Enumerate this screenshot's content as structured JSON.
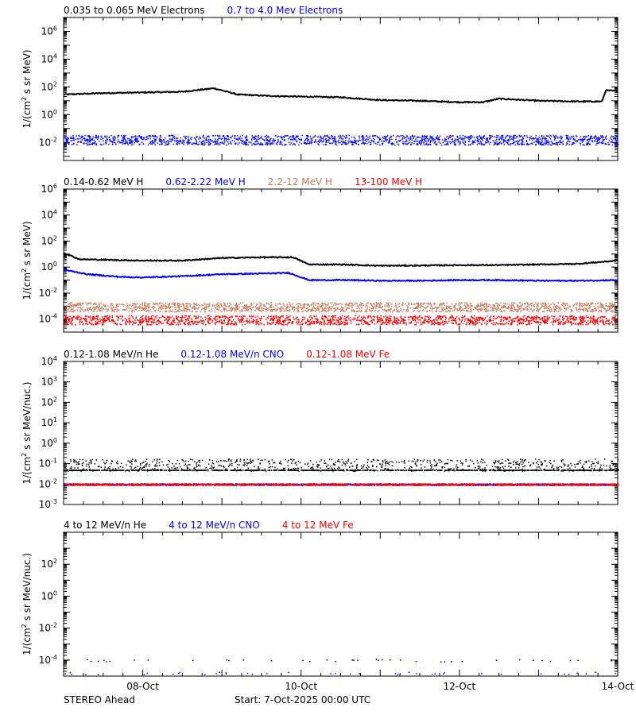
{
  "footer": {
    "left": "STEREO Ahead",
    "right": "Start:  7-Oct-2025 00:00 UTC"
  },
  "x_axis": {
    "range": [
      7.0,
      14.0
    ],
    "tick_labels": [
      {
        "x": 8,
        "label": "08-Oct"
      },
      {
        "x": 10,
        "label": "10-Oct"
      },
      {
        "x": 12,
        "label": "12-Oct"
      },
      {
        "x": 14,
        "label": "14-Oct"
      }
    ]
  },
  "chart_data": [
    {
      "type": "scatter",
      "ylabel_html": "1/(cm<tspan baseline-shift='super' font-size='9'>2</tspan> s sr MeV)",
      "ylabel": "1/(cm2 s sr MeV)",
      "ylog": true,
      "ylim_exp": [
        -3.3,
        7.0
      ],
      "yticks": [
        {
          "e": 6,
          "label": "10",
          "sup": "6"
        },
        {
          "e": 4,
          "label": "10",
          "sup": "4"
        },
        {
          "e": 2,
          "label": "10",
          "sup": "2"
        },
        {
          "e": 0,
          "label": "10",
          "sup": "0"
        },
        {
          "e": -2,
          "label": "10",
          "sup": "-2"
        }
      ],
      "legend": [
        {
          "name": "0.035 to 0.065 MeV Electrons",
          "color": "#000000"
        },
        {
          "name": "0.7 to 4.0 Mev Electrons",
          "color": "#0000ff"
        }
      ],
      "series": [
        {
          "name": "0.035 to 0.065 MeV Electrons",
          "color": "#000000",
          "style": "line",
          "points": [
            [
              7.0,
              1.45
            ],
            [
              7.5,
              1.55
            ],
            [
              8.0,
              1.6
            ],
            [
              8.5,
              1.65
            ],
            [
              8.9,
              1.9
            ],
            [
              9.2,
              1.45
            ],
            [
              9.6,
              1.35
            ],
            [
              10.0,
              1.3
            ],
            [
              10.5,
              1.25
            ],
            [
              11.0,
              1.05
            ],
            [
              11.5,
              1.0
            ],
            [
              12.0,
              0.9
            ],
            [
              12.3,
              0.9
            ],
            [
              12.5,
              1.15
            ],
            [
              13.0,
              1.0
            ],
            [
              13.5,
              0.95
            ],
            [
              13.8,
              0.95
            ],
            [
              13.85,
              1.75
            ],
            [
              14.0,
              1.7
            ]
          ]
        },
        {
          "name": "0.7 to 4.0 Mev Electrons",
          "color": "#0000ff",
          "style": "scatter",
          "center": -1.8,
          "spread": 0.35
        }
      ]
    },
    {
      "type": "scatter",
      "ylabel": "1/(cm2 s sr MeV)",
      "ylog": true,
      "ylim_exp": [
        -5.0,
        6.0
      ],
      "yticks": [
        {
          "e": 6,
          "label": "10",
          "sup": "6"
        },
        {
          "e": 4,
          "label": "10",
          "sup": "4"
        },
        {
          "e": 2,
          "label": "10",
          "sup": "2"
        },
        {
          "e": 0,
          "label": "10",
          "sup": "0"
        },
        {
          "e": -2,
          "label": "10",
          "sup": "-2"
        },
        {
          "e": -4,
          "label": "10",
          "sup": "-4"
        }
      ],
      "legend": [
        {
          "name": "0.14-0.62 MeV H",
          "color": "#000000"
        },
        {
          "name": "0.62-2.22 MeV H",
          "color": "#0000ff"
        },
        {
          "name": "2.2-12 MeV H",
          "color": "#c87a5a"
        },
        {
          "name": "13-100 MeV H",
          "color": "#ff0000"
        }
      ],
      "series": [
        {
          "name": "0.14-0.62 MeV H",
          "color": "#000000",
          "style": "line",
          "points": [
            [
              7.0,
              1.1
            ],
            [
              7.2,
              0.6
            ],
            [
              7.6,
              0.55
            ],
            [
              8.0,
              0.5
            ],
            [
              8.5,
              0.5
            ],
            [
              9.0,
              0.7
            ],
            [
              9.5,
              0.75
            ],
            [
              9.9,
              0.75
            ],
            [
              10.1,
              0.2
            ],
            [
              10.5,
              0.2
            ],
            [
              11.0,
              0.1
            ],
            [
              11.5,
              0.12
            ],
            [
              12.0,
              0.15
            ],
            [
              12.5,
              0.15
            ],
            [
              13.0,
              0.2
            ],
            [
              13.5,
              0.25
            ],
            [
              14.0,
              0.5
            ]
          ]
        },
        {
          "name": "0.62-2.22 MeV H",
          "color": "#0000ff",
          "style": "line",
          "points": [
            [
              7.0,
              -0.2
            ],
            [
              7.3,
              -0.55
            ],
            [
              7.7,
              -0.75
            ],
            [
              8.0,
              -0.8
            ],
            [
              8.5,
              -0.7
            ],
            [
              9.0,
              -0.55
            ],
            [
              9.5,
              -0.5
            ],
            [
              9.85,
              -0.45
            ],
            [
              10.1,
              -1.0
            ],
            [
              10.6,
              -1.0
            ],
            [
              11.0,
              -1.05
            ],
            [
              11.5,
              -1.05
            ],
            [
              12.0,
              -1.0
            ],
            [
              12.5,
              -1.0
            ],
            [
              13.0,
              -1.05
            ],
            [
              13.5,
              -1.05
            ],
            [
              14.0,
              -1.0
            ]
          ]
        },
        {
          "name": "2.2-12 MeV H",
          "color": "#c87a5a",
          "style": "scatter",
          "center": -3.05,
          "spread": 0.35
        },
        {
          "name": "13-100 MeV H",
          "color": "#ff0000",
          "style": "scatter",
          "center": -4.05,
          "spread": 0.35
        }
      ]
    },
    {
      "type": "scatter",
      "ylabel": "1/(cm2 s sr MeV/nuc.)",
      "ylog": true,
      "ylim_exp": [
        -3.0,
        4.0
      ],
      "yticks": [
        {
          "e": 4,
          "label": "10",
          "sup": "4"
        },
        {
          "e": 3,
          "label": "10",
          "sup": "3"
        },
        {
          "e": 2,
          "label": "10",
          "sup": "2"
        },
        {
          "e": 1,
          "label": "10",
          "sup": "1"
        },
        {
          "e": 0,
          "label": "10",
          "sup": "0"
        },
        {
          "e": -1,
          "label": "10",
          "sup": "-1"
        },
        {
          "e": -2,
          "label": "10",
          "sup": "-2"
        },
        {
          "e": -3,
          "label": "10",
          "sup": "-3"
        }
      ],
      "legend": [
        {
          "name": "0.12-1.08 MeV/n He",
          "color": "#000000"
        },
        {
          "name": "0.12-1.08 MeV/n CNO",
          "color": "#0000ff"
        },
        {
          "name": "0.12-1.08 MeV Fe",
          "color": "#ff0000"
        }
      ],
      "series": [
        {
          "name": "0.12-1.08 MeV/n He",
          "color": "#000000",
          "style": "scatter",
          "center": -1.05,
          "spread": 0.3
        },
        {
          "name": "0.12-1.08 MeV/n CNO",
          "color": "#0000ff",
          "style": "scatter",
          "center": -2.0,
          "spread": 0.04
        },
        {
          "name": "0.12-1.08 MeV Fe",
          "color": "#ff0000",
          "style": "scatter",
          "center": -2.0,
          "spread": 0.04
        }
      ]
    },
    {
      "type": "scatter",
      "ylabel": "1/(cm2 s sr MeV/nuc.)",
      "ylog": true,
      "ylim_exp": [
        -5.0,
        4.0
      ],
      "yticks": [
        {
          "e": 2,
          "label": "10",
          "sup": "2"
        },
        {
          "e": 0,
          "label": "10",
          "sup": "0"
        },
        {
          "e": -2,
          "label": "10",
          "sup": "-2"
        },
        {
          "e": -4,
          "label": "10",
          "sup": "-4"
        }
      ],
      "legend": [
        {
          "name": "4 to 12 MeV/n He",
          "color": "#000000"
        },
        {
          "name": "4 to 12 MeV/n CNO",
          "color": "#0000ff"
        },
        {
          "name": "4 to 12 MeV Fe",
          "color": "#ff0000"
        }
      ],
      "series": [
        {
          "name": "4 to 12 MeV/n He",
          "color": "#000000",
          "style": "sparse",
          "center": -4.0
        },
        {
          "name": "4 to 12 MeV/n CNO",
          "color": "#0000ff",
          "style": "sparse",
          "center": -4.8
        },
        {
          "name": "4 to 12 MeV Fe",
          "color": "#ff0000",
          "style": "none",
          "center": -4.8
        }
      ]
    }
  ]
}
